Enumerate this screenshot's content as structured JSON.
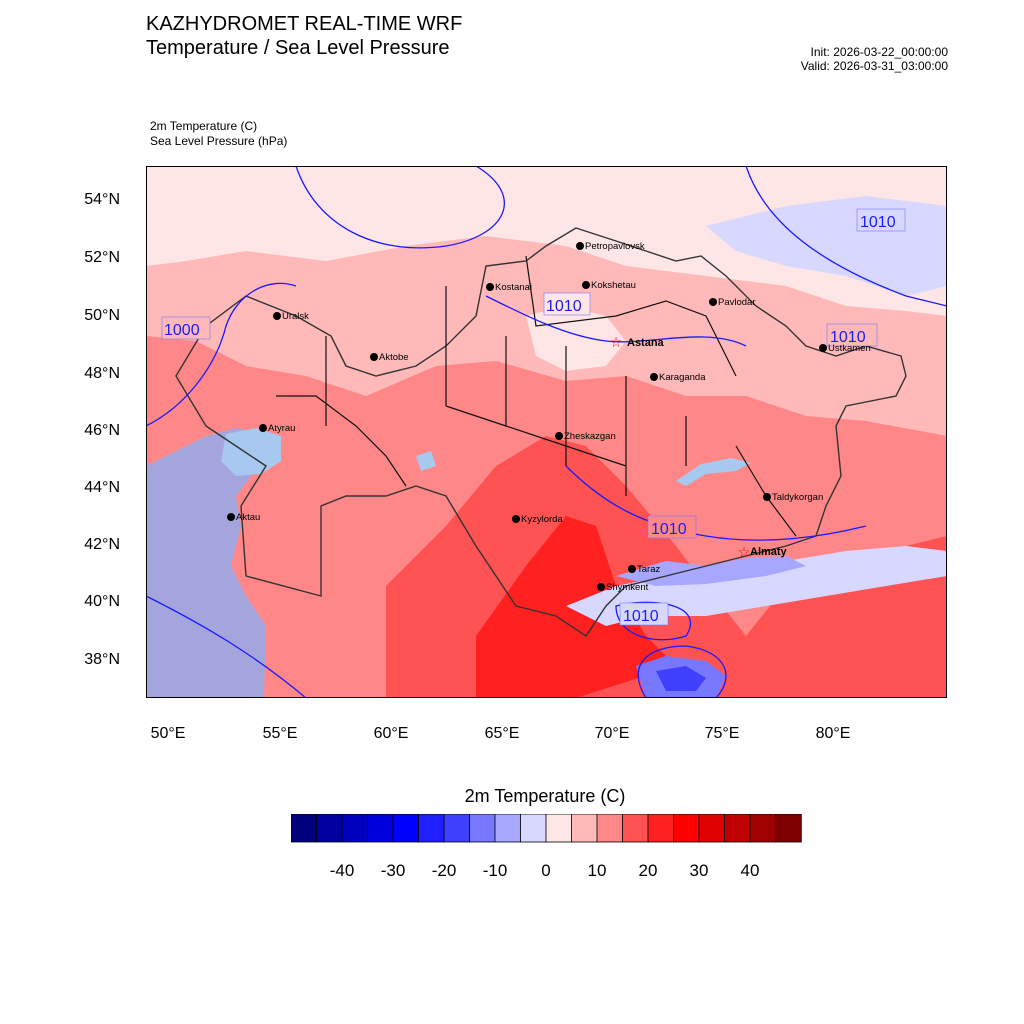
{
  "header": {
    "title_line1": "KAZHYDROMET REAL-TIME WRF",
    "title_line2": "Temperature / Sea Level Pressure",
    "init": "Init: 2026-03-22_00:00:00",
    "valid": "Valid: 2026-03-31_03:00:00"
  },
  "fields": {
    "temperature": "2m Temperature   (C)",
    "pressure": "Sea Level Pressure   (hPa)"
  },
  "axes": {
    "lat_labels": [
      "54°N",
      "52°N",
      "50°N",
      "48°N",
      "46°N",
      "44°N",
      "42°N",
      "40°N",
      "38°N"
    ],
    "lon_labels": [
      "50°E",
      "55°E",
      "60°E",
      "65°E",
      "70°E",
      "75°E",
      "80°E"
    ]
  },
  "cities": [
    {
      "name": "Petropavlovsk",
      "bold": false
    },
    {
      "name": "Kostanai",
      "bold": false
    },
    {
      "name": "Kokshetau",
      "bold": false
    },
    {
      "name": "Pavlodar",
      "bold": false
    },
    {
      "name": "Uralsk",
      "bold": false
    },
    {
      "name": "Astana",
      "bold": true
    },
    {
      "name": "Aktobe",
      "bold": false
    },
    {
      "name": "Ustkamen",
      "bold": false
    },
    {
      "name": "Karaganda",
      "bold": false
    },
    {
      "name": "Atyrau",
      "bold": false
    },
    {
      "name": "Zheskazgan",
      "bold": false
    },
    {
      "name": "Taldykorgan",
      "bold": false
    },
    {
      "name": "Aktau",
      "bold": false
    },
    {
      "name": "Kyzylorda",
      "bold": false
    },
    {
      "name": "Almaty",
      "bold": true
    },
    {
      "name": "Taraz",
      "bold": false
    },
    {
      "name": "Shymkent",
      "bold": false
    }
  ],
  "isobar_labels": [
    "1010",
    "1010",
    "1000",
    "1010",
    "1010",
    "1010"
  ],
  "colorbar": {
    "title": "2m Temperature  (C)",
    "colors": [
      "#00007f",
      "#00009f",
      "#0000bf",
      "#0000df",
      "#0000ff",
      "#1f1fff",
      "#4040ff",
      "#7777ff",
      "#a7a7ff",
      "#d8d8ff",
      "#ffe6e6",
      "#ffb9b9",
      "#ff8787",
      "#ff5252",
      "#ff2020",
      "#ff0000",
      "#df0000",
      "#bf0000",
      "#9f0000",
      "#7f0000"
    ],
    "ticks": [
      "-40",
      "-30",
      "-20",
      "-10",
      "0",
      "10",
      "20",
      "30",
      "40"
    ]
  }
}
